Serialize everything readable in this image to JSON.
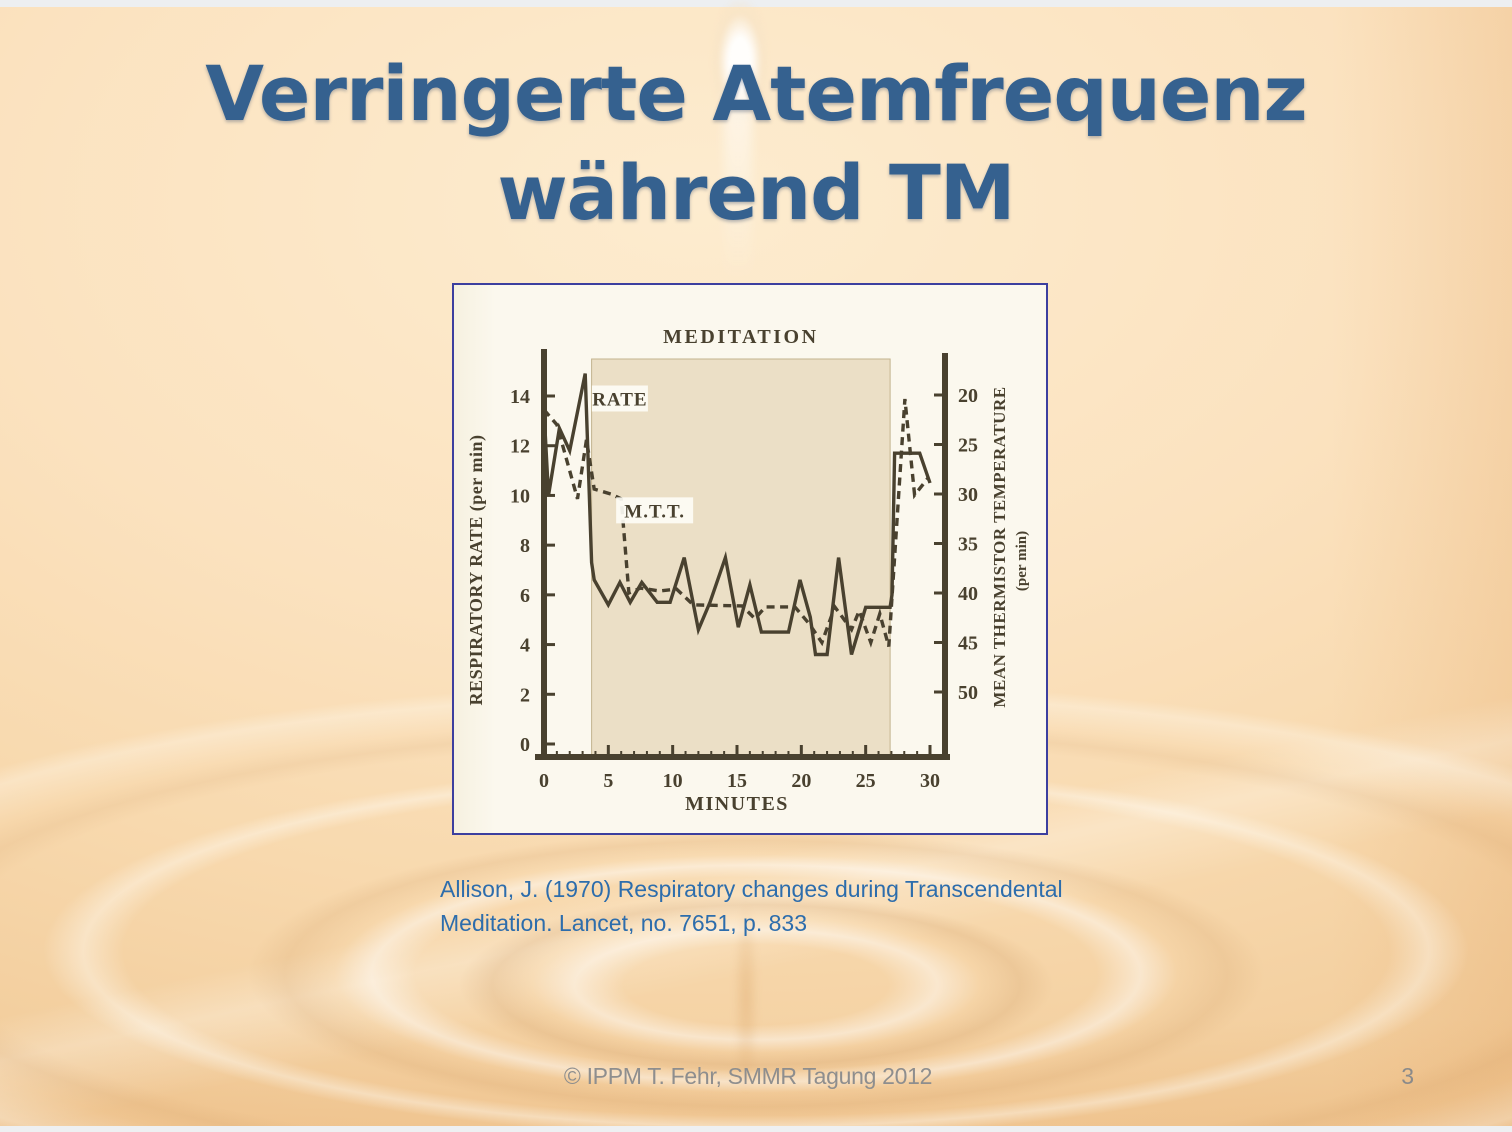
{
  "slide": {
    "title_line1": "Verringerte Atemfrequenz",
    "title_line2": "während TM",
    "citation_line1": "Allison, J. (1970) Respiratory changes during Transcendental",
    "citation_line2": "Meditation. Lancet, no. 7651, p. 833",
    "footer_credit": "© IPPM T. Fehr, SMMR Tagung 2012",
    "page_number": "3"
  },
  "colors": {
    "title_blue": "#35618f",
    "citation_blue": "#2d6dac",
    "footer_gray": "#8e8e8e",
    "figure_border": "#3c3f9f",
    "figure_paper": "#fbf8ee",
    "meditation_band": "#ebdfc6",
    "chart_ink": "#49412f",
    "slide_peach_light": "#fdeccf",
    "slide_peach_deep": "#eec794"
  },
  "chart_data": {
    "type": "line",
    "title": "MEDITATION",
    "xlabel": "MINUTES",
    "xlim": [
      0,
      30
    ],
    "x_ticks": [
      0,
      5,
      10,
      15,
      20,
      25,
      30
    ],
    "x_minor_tick_every": 1,
    "meditation_period": [
      3.7,
      26.9
    ],
    "left_axis": {
      "label": "RESPIRATORY RATE (per min)",
      "lim": [
        0,
        14
      ],
      "ticks": [
        0,
        2,
        4,
        6,
        8,
        10,
        12,
        14
      ]
    },
    "right_axis": {
      "label": "MEAN THERMISTOR TEMPERATURE",
      "sublabel": "(per min)",
      "lim": [
        20,
        50
      ],
      "ticks": [
        20,
        25,
        30,
        35,
        40,
        45,
        50
      ],
      "inverted": true
    },
    "series": [
      {
        "name": "RATE",
        "style": "solid",
        "axis": "left",
        "points": [
          [
            0,
            13.4
          ],
          [
            0.35,
            10
          ],
          [
            1.2,
            12.7
          ],
          [
            2,
            11.8
          ],
          [
            3.2,
            14.9
          ],
          [
            3.7,
            7.3
          ],
          [
            3.9,
            6.6
          ],
          [
            5,
            5.6
          ],
          [
            5.9,
            6.5
          ],
          [
            6.7,
            5.7
          ],
          [
            7.6,
            6.5
          ],
          [
            8.8,
            5.7
          ],
          [
            9.8,
            5.7
          ],
          [
            10.9,
            7.5
          ],
          [
            12,
            4.6
          ],
          [
            12.9,
            5.7
          ],
          [
            14.1,
            7.5
          ],
          [
            15.1,
            4.7
          ],
          [
            16,
            6.4
          ],
          [
            16.9,
            4.5
          ],
          [
            19,
            4.5
          ],
          [
            19.9,
            6.6
          ],
          [
            20.7,
            5.1
          ],
          [
            21.1,
            3.6
          ],
          [
            22,
            3.6
          ],
          [
            22.9,
            7.5
          ],
          [
            23.9,
            3.6
          ],
          [
            25,
            5.5
          ],
          [
            26.9,
            5.5
          ],
          [
            27.05,
            6
          ],
          [
            27.25,
            11.7
          ],
          [
            29.2,
            11.7
          ],
          [
            30,
            10.5
          ]
        ]
      },
      {
        "name": "M.T.T.",
        "style": "dashed",
        "axis": "right",
        "points": [
          [
            0,
            21.5
          ],
          [
            1,
            23
          ],
          [
            2.6,
            30.5
          ],
          [
            3.3,
            24.5
          ],
          [
            3.9,
            29.5
          ],
          [
            5.2,
            30
          ],
          [
            6,
            30.5
          ],
          [
            6.6,
            40
          ],
          [
            7.5,
            39.5
          ],
          [
            9,
            39.8
          ],
          [
            10.3,
            39.6
          ],
          [
            11.6,
            41.2
          ],
          [
            15.4,
            41.3
          ],
          [
            16.4,
            42.6
          ],
          [
            17.2,
            41.4
          ],
          [
            19.5,
            41.4
          ],
          [
            20.6,
            43.1
          ],
          [
            21.6,
            45
          ],
          [
            22.6,
            41.4
          ],
          [
            23.9,
            43.7
          ],
          [
            24.5,
            41.8
          ],
          [
            25.4,
            45
          ],
          [
            26.1,
            42.1
          ],
          [
            26.8,
            45.4
          ],
          [
            28.05,
            20.4
          ],
          [
            28.8,
            30.1
          ],
          [
            29.9,
            28.3
          ]
        ]
      }
    ],
    "annotations": [
      {
        "text": "RATE",
        "min": 5.9,
        "rate": 13.9
      },
      {
        "text": "M.T.T.",
        "min": 8.6,
        "rate": 9.4
      }
    ]
  }
}
